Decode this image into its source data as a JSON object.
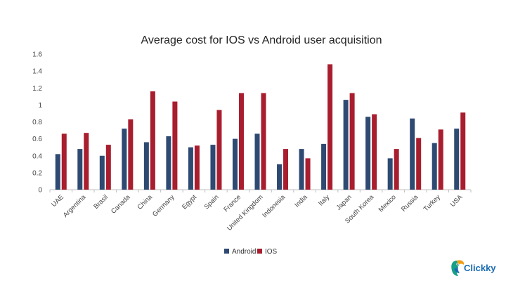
{
  "chart_data": {
    "type": "bar",
    "title": "Average cost for IOS vs Android user acquisition",
    "xlabel": "",
    "ylabel": "",
    "ylim": [
      0,
      1.6
    ],
    "yticks": [
      "0",
      "0.2",
      "0.4",
      "0.6",
      "0.8",
      "1",
      "1.2",
      "1.4",
      "1.6"
    ],
    "grid": false,
    "legend_position": "bottom",
    "categories": [
      "UAE",
      "Argentina",
      "Brasil",
      "Canada",
      "China",
      "Germany",
      "Egypt",
      "Spain",
      "France",
      "United Kingdom",
      "Indonesia",
      "India",
      "Italy",
      "Japan",
      "South Korea",
      "Mexico",
      "Russia",
      "Turkey",
      "USA"
    ],
    "series": [
      {
        "name": "Android",
        "color": "#2e4a72",
        "values": [
          0.42,
          0.48,
          0.4,
          0.72,
          0.56,
          0.63,
          0.5,
          0.53,
          0.6,
          0.66,
          0.3,
          0.48,
          0.54,
          1.06,
          0.86,
          0.37,
          0.84,
          0.55,
          0.72
        ]
      },
      {
        "name": "IOS",
        "color": "#a81e2f",
        "values": [
          0.66,
          0.67,
          0.53,
          0.83,
          1.16,
          1.04,
          0.52,
          0.94,
          1.14,
          1.14,
          0.48,
          0.37,
          1.48,
          1.14,
          0.89,
          0.48,
          0.61,
          0.71,
          0.91
        ]
      }
    ]
  },
  "brand": {
    "name": "Clickky",
    "icon": "toucan-logo-icon",
    "accent": "#1a6cb3"
  }
}
